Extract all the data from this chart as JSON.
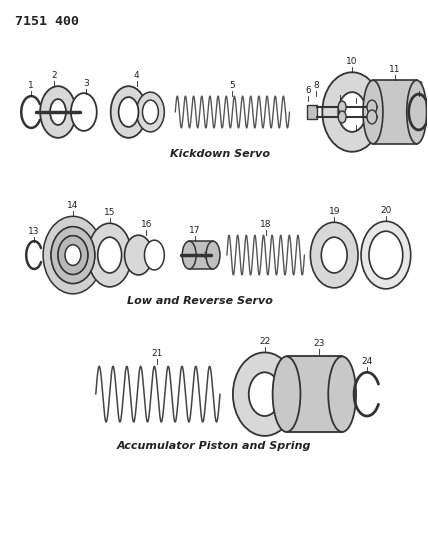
{
  "title": "7151 400",
  "bg_color": "#ffffff",
  "fig_width": 4.28,
  "fig_height": 5.33,
  "dpi": 100,
  "section1_label": "Kickdown Servo",
  "section2_label": "Low and Reverse Servo",
  "section3_label": "Accumulator Piston and Spring",
  "line_color": "#333333",
  "text_color": "#222222",
  "num_fontsize": 6.5,
  "title_fontsize": 9.5,
  "section_label_fontsize": 8.0
}
